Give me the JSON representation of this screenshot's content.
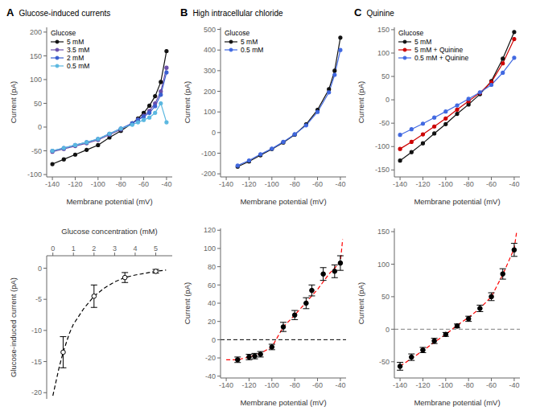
{
  "chart_data": [
    {
      "type": "line",
      "title": "Glucose-induced currents",
      "annotations": [
        "A"
      ],
      "x_label": "Membrane potential (mV)",
      "y_label": "Current (pA)",
      "xlim": [
        -145,
        -35
      ],
      "ylim": [
        -105,
        210
      ],
      "xticks": [
        -140,
        -120,
        -100,
        -80,
        -60,
        -40
      ],
      "yticks": [
        -100,
        -50,
        0,
        50,
        100,
        150,
        200
      ],
      "grid": false,
      "legend": "upper left",
      "legend_title": "Glucose",
      "marker": "circle",
      "series": [
        {
          "name": "5 mM",
          "color": "#111111",
          "x": [
            -140,
            -130,
            -120,
            -110,
            -100,
            -90,
            -80,
            -70,
            -65,
            -60,
            -55,
            -50,
            -45,
            -40
          ],
          "values": [
            -78,
            -68,
            -58,
            -48,
            -38,
            -22,
            -8,
            8,
            18,
            30,
            45,
            65,
            95,
            160
          ]
        },
        {
          "name": "3.5 mM",
          "color": "#6A4FAA",
          "x": [
            -140,
            -130,
            -120,
            -110,
            -100,
            -90,
            -80,
            -70,
            -65,
            -60,
            -55,
            -50,
            -45,
            -40
          ],
          "values": [
            -52,
            -46,
            -40,
            -34,
            -27,
            -16,
            -5,
            8,
            16,
            24,
            34,
            50,
            75,
            125
          ]
        },
        {
          "name": "2 mM",
          "color": "#3A5FD0",
          "x": [
            -140,
            -130,
            -120,
            -110,
            -100,
            -90,
            -80,
            -70,
            -65,
            -60,
            -55,
            -50,
            -45,
            -40
          ],
          "values": [
            -50,
            -44,
            -38,
            -32,
            -25,
            -14,
            -3,
            8,
            15,
            22,
            30,
            44,
            68,
            115
          ]
        },
        {
          "name": "0.5 mM",
          "color": "#5BB8E0",
          "x": [
            -140,
            -130,
            -120,
            -110,
            -100,
            -90,
            -80,
            -70,
            -65,
            -60,
            -55,
            -50,
            -45,
            -40
          ],
          "values": [
            -50,
            -44,
            -38,
            -32,
            -25,
            -14,
            -3,
            5,
            10,
            15,
            20,
            30,
            50,
            10
          ]
        }
      ]
    },
    {
      "type": "line",
      "title": "High intracellular chloride",
      "annotations": [
        "B"
      ],
      "x_label": "Membrane potential (mV)",
      "y_label": "Current (pA)",
      "xlim": [
        -145,
        -35
      ],
      "ylim": [
        -215,
        510
      ],
      "xticks": [
        -140,
        -120,
        -100,
        -80,
        -60,
        -40
      ],
      "yticks": [
        -200,
        -100,
        0,
        100,
        200,
        300,
        400,
        500
      ],
      "grid": false,
      "legend": "upper left",
      "legend_title": "Glucose",
      "marker": "circle",
      "series": [
        {
          "name": "5 mM",
          "color": "#111111",
          "x": [
            -130,
            -120,
            -110,
            -100,
            -90,
            -80,
            -70,
            -60,
            -50,
            -45,
            -40
          ],
          "values": [
            -165,
            -140,
            -110,
            -80,
            -48,
            -10,
            40,
            110,
            210,
            300,
            460
          ]
        },
        {
          "name": "0.5 mM",
          "color": "#4169E1",
          "x": [
            -130,
            -120,
            -110,
            -100,
            -90,
            -80,
            -70,
            -60,
            -50,
            -45,
            -40
          ],
          "values": [
            -160,
            -135,
            -105,
            -78,
            -45,
            -8,
            35,
            100,
            195,
            280,
            400
          ]
        }
      ]
    },
    {
      "type": "line",
      "title": "Quinine",
      "annotations": [
        "C"
      ],
      "x_label": "Membrane potential (mV)",
      "y_label": "Current (pA)",
      "xlim": [
        -145,
        -35
      ],
      "ylim": [
        -165,
        155
      ],
      "xticks": [
        -140,
        -120,
        -100,
        -80,
        -60,
        -40
      ],
      "yticks": [
        -150,
        -100,
        -50,
        0,
        50,
        100,
        150
      ],
      "grid": false,
      "legend": "upper left",
      "legend_title": "Glucose",
      "marker": "circle",
      "series": [
        {
          "name": "5 mM",
          "color": "#111111",
          "x": [
            -140,
            -130,
            -120,
            -110,
            -100,
            -90,
            -80,
            -70,
            -60,
            -50,
            -40
          ],
          "values": [
            -130,
            -112,
            -93,
            -72,
            -52,
            -30,
            -10,
            12,
            40,
            88,
            145
          ]
        },
        {
          "name": "5 mM + Quinine",
          "color": "#CC0000",
          "x": [
            -140,
            -130,
            -120,
            -110,
            -100,
            -90,
            -80,
            -70,
            -60,
            -50,
            -40
          ],
          "values": [
            -105,
            -90,
            -74,
            -57,
            -40,
            -21,
            -3,
            15,
            38,
            78,
            130
          ]
        },
        {
          "name": "0.5 mM + Quinine",
          "color": "#4169E1",
          "x": [
            -140,
            -130,
            -120,
            -110,
            -100,
            -90,
            -80,
            -70,
            -60,
            -50,
            -40
          ],
          "values": [
            -75,
            -63,
            -51,
            -38,
            -25,
            -12,
            2,
            16,
            32,
            58,
            90
          ]
        }
      ]
    },
    {
      "type": "scatter",
      "x_label": "Glucose concentration (mM)",
      "y_label": "Glucose-induced current (pA)",
      "xlim": [
        -0.3,
        5.8
      ],
      "ylim": [
        -21,
        2
      ],
      "xticks": [
        0,
        1,
        2,
        3,
        4,
        5
      ],
      "yticks": [
        -20,
        -15,
        -10,
        -5,
        0
      ],
      "grid": false,
      "series": [
        {
          "type": "line",
          "color": "black",
          "line_style": "dashed",
          "x": [
            0.0,
            0.3,
            0.5,
            0.8,
            1.0,
            1.5,
            2.0,
            2.5,
            3.0,
            3.5,
            4.0,
            4.5,
            5.0,
            5.5
          ],
          "values": [
            -20.5,
            -16.0,
            -13.5,
            -10.5,
            -9.0,
            -6.5,
            -4.5,
            -3.2,
            -2.2,
            -1.5,
            -1.1,
            -0.8,
            -0.5,
            -0.3
          ]
        },
        {
          "type": "scatter",
          "color": "black",
          "marker": "open_circle",
          "x": [
            0.5,
            2.0,
            3.5,
            5.0
          ],
          "values": [
            -13.5,
            -4.5,
            -1.5,
            -0.5
          ],
          "errors": [
            2.5,
            1.8,
            0.8,
            0.3
          ]
        }
      ]
    },
    {
      "type": "scatter",
      "x_label": "Membrane potential (mV)",
      "y_label": "Current (pA)",
      "xlim": [
        -145,
        -35
      ],
      "ylim": [
        -42,
        122
      ],
      "xticks": [
        -140,
        -120,
        -100,
        -80,
        -60,
        -40
      ],
      "yticks": [
        -40,
        -20,
        0,
        20,
        40,
        60,
        80,
        100,
        120
      ],
      "grid": false,
      "series": [
        {
          "type": "hline",
          "color": "black",
          "line_style": "dashed",
          "values": [
            0
          ]
        },
        {
          "type": "line",
          "color": "red",
          "line_style": "dashed",
          "x": [
            -140,
            -130,
            -120,
            -110,
            -100,
            -90,
            -80,
            -70,
            -60,
            -50,
            -40,
            -38
          ],
          "values": [
            -22,
            -22,
            -19,
            -15,
            -8,
            14,
            27,
            41,
            55,
            72,
            85,
            110
          ]
        },
        {
          "type": "scatter",
          "color": "black",
          "marker": "circle",
          "x": [
            -130,
            -120,
            -115,
            -110,
            -100,
            -90,
            -80,
            -70,
            -65,
            -55,
            -45,
            -40
          ],
          "values": [
            -22,
            -19,
            -18,
            -16,
            -8,
            14,
            27,
            40,
            54,
            72,
            75,
            84
          ],
          "errors": [
            3,
            3,
            3,
            3,
            3,
            5,
            5,
            6,
            6,
            7,
            7,
            8
          ]
        }
      ]
    },
    {
      "type": "scatter",
      "x_label": "Membrane potential (mV)",
      "y_label": "Current (pA)",
      "xlim": [
        -145,
        -35
      ],
      "ylim": [
        -75,
        155
      ],
      "xticks": [
        -140,
        -120,
        -100,
        -80,
        -60,
        -40
      ],
      "yticks": [
        -50,
        0,
        50,
        100,
        150
      ],
      "grid": false,
      "series": [
        {
          "type": "hline",
          "color": "gray",
          "line_style": "dashed",
          "values": [
            0
          ]
        },
        {
          "type": "line",
          "color": "red",
          "line_style": "dashed",
          "x": [
            -140,
            -130,
            -120,
            -110,
            -100,
            -90,
            -80,
            -70,
            -60,
            -50,
            -40,
            -38
          ],
          "values": [
            -57,
            -45,
            -33,
            -20,
            -8,
            6,
            18,
            32,
            50,
            84,
            124,
            148
          ]
        },
        {
          "type": "scatter",
          "color": "black",
          "marker": "circle",
          "x": [
            -140,
            -130,
            -120,
            -110,
            -100,
            -90,
            -80,
            -70,
            -60,
            -50,
            -40
          ],
          "values": [
            -57,
            -43,
            -32,
            -18,
            -8,
            5,
            16,
            32,
            50,
            85,
            122
          ],
          "errors": [
            6,
            5,
            4,
            4,
            3,
            3,
            4,
            5,
            6,
            8,
            10
          ]
        }
      ]
    }
  ]
}
